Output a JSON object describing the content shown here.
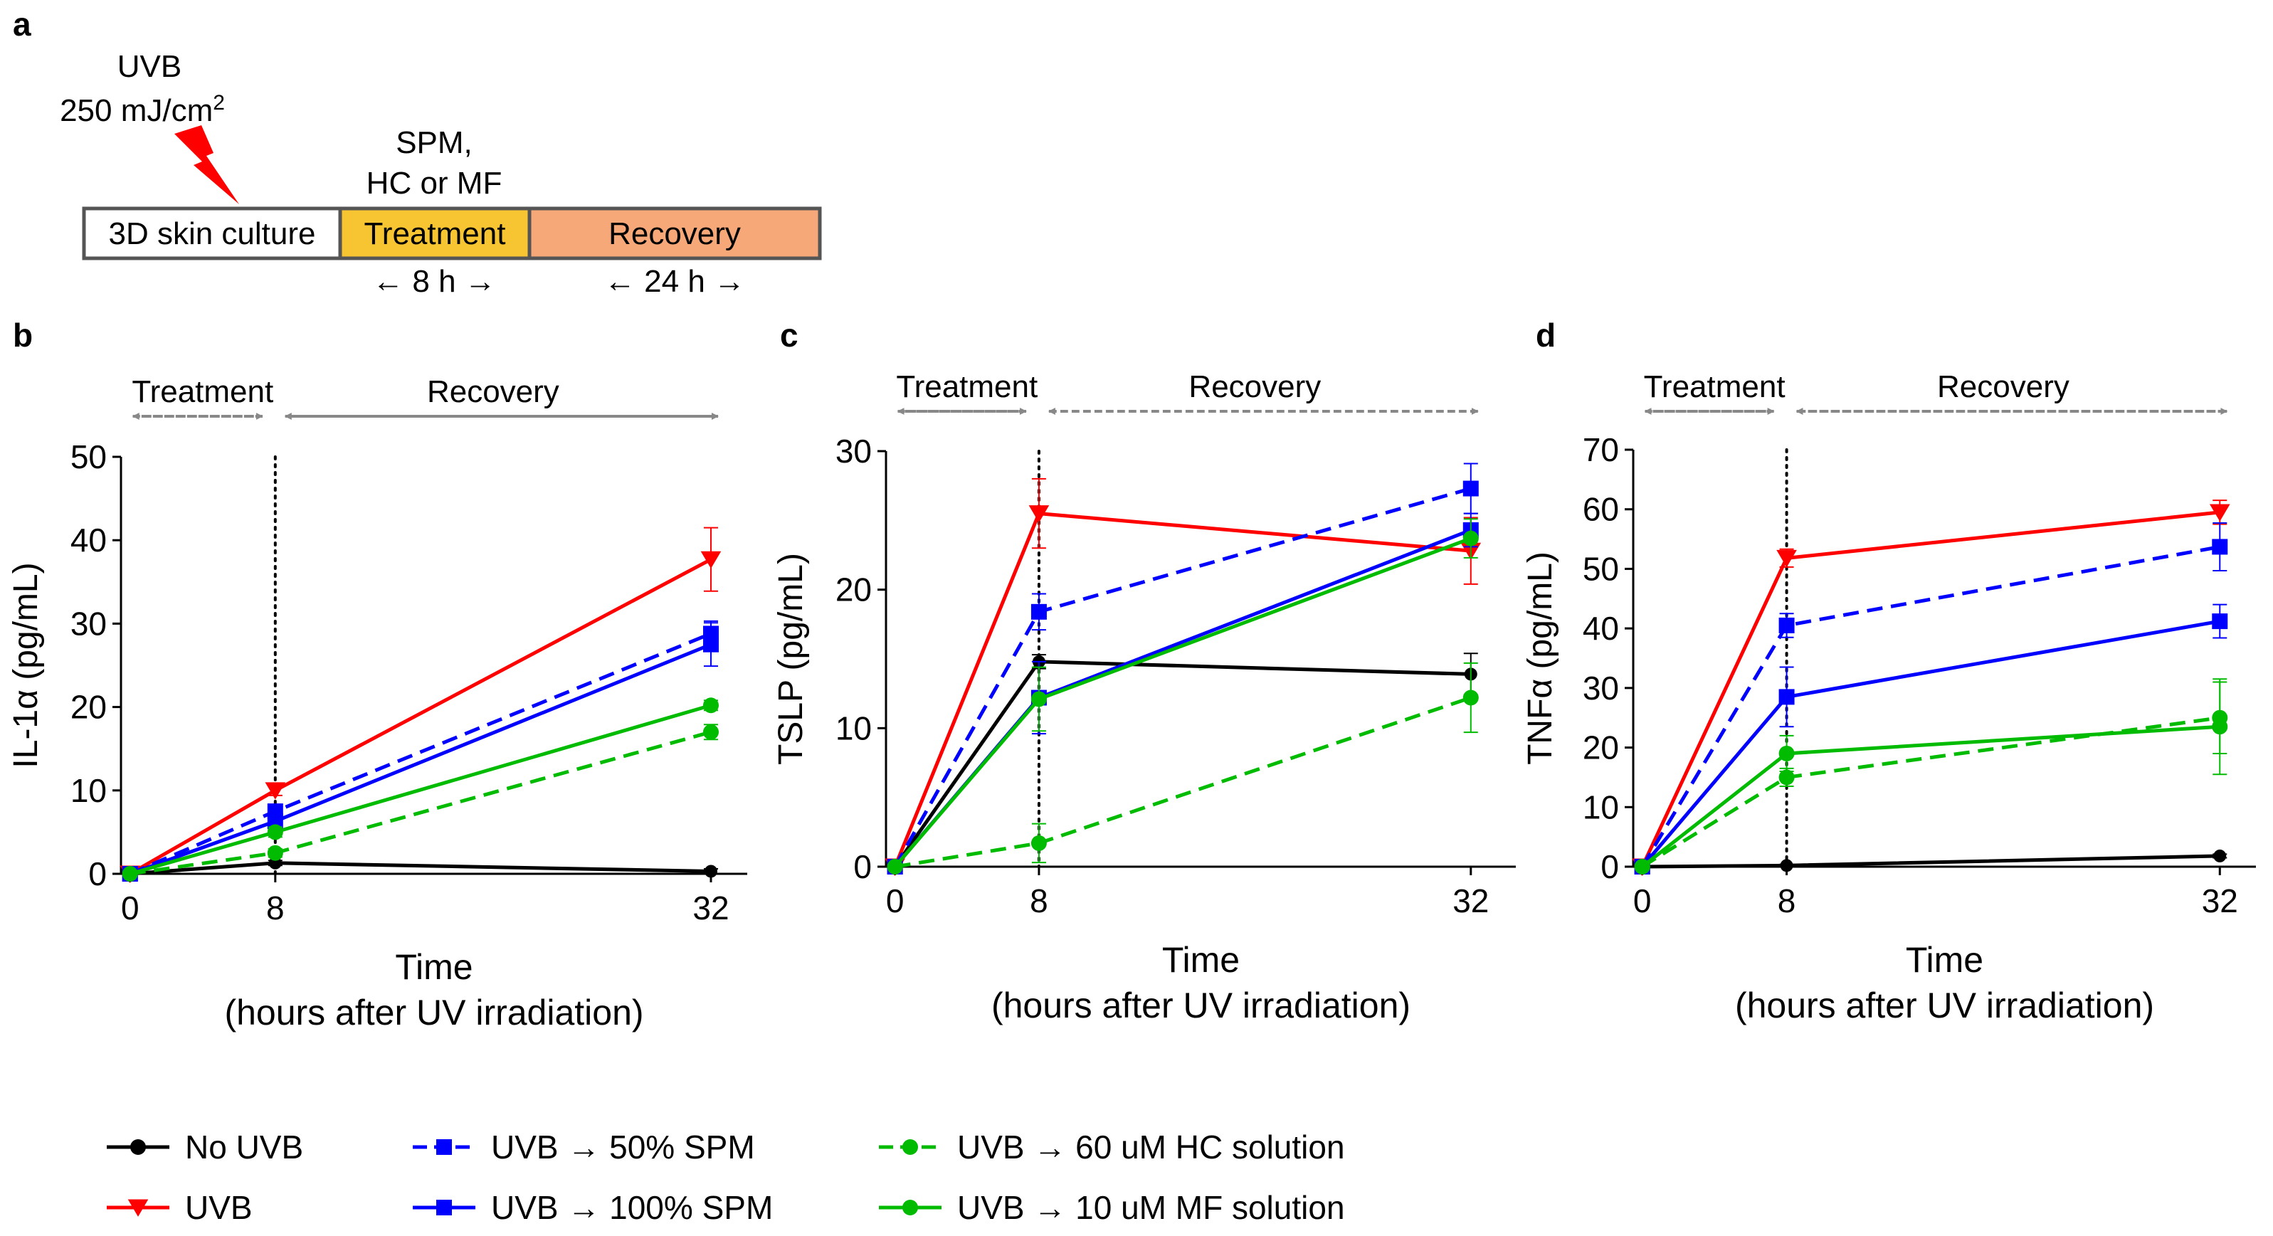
{
  "panel_labels": {
    "a": "a",
    "b": "b",
    "c": "c",
    "d": "d"
  },
  "schematic": {
    "uvb_label": "UVB",
    "dose_label": "250 mJ/cm",
    "dose_superscript": "2",
    "treatment_agents_line1": "SPM,",
    "treatment_agents_line2": "HC or MF",
    "stage_culture": "3D skin culture",
    "stage_treatment": "Treatment",
    "stage_recovery": "Recovery",
    "duration_treatment": "← 8 h →",
    "duration_recovery": "← 24 h →",
    "colors": {
      "treatment": "#f7c531",
      "recovery": "#f7a878",
      "bolt": "#ff0000",
      "border": "#555555"
    }
  },
  "phase_labels": {
    "treatment": "Treatment",
    "recovery": "Recovery"
  },
  "x_title": "Time",
  "x_subtitle": "(hours after UV irradiation)",
  "legend": [
    {
      "label": "No UVB",
      "color": "#000000",
      "dash": false,
      "marker": "circle"
    },
    {
      "label": "UVB",
      "color": "#ff0000",
      "dash": false,
      "marker": "triangle-down"
    },
    {
      "label": "UVB → 50% SPM",
      "color": "#0000ff",
      "dash": true,
      "marker": "square"
    },
    {
      "label": "UVB → 100% SPM",
      "color": "#0000ff",
      "dash": false,
      "marker": "square"
    },
    {
      "label": "UVB → 60 uM HC solution",
      "color": "#00bb00",
      "dash": true,
      "marker": "circle"
    },
    {
      "label": "UVB → 10 uM MF solution",
      "color": "#00bb00",
      "dash": false,
      "marker": "circle"
    }
  ],
  "chart_data": [
    {
      "type": "line",
      "panel": "b",
      "ylabel": "IL-1α (pg/mL)",
      "x": [
        0,
        8,
        32
      ],
      "xticks": [
        "0",
        "8",
        "32"
      ],
      "xlim": [
        -0.5,
        34
      ],
      "ylim": [
        0,
        50
      ],
      "yticks": [
        "0",
        "10",
        "20",
        "30",
        "40",
        "50"
      ],
      "series": [
        {
          "name": "No UVB",
          "values": [
            0,
            1.3,
            0.3
          ],
          "errors": [
            0,
            0.3,
            0.3
          ],
          "color": "#000000",
          "dash": false,
          "marker": "circle"
        },
        {
          "name": "UVB",
          "values": [
            0,
            10,
            37.7
          ],
          "errors": [
            0,
            0.6,
            3.8
          ],
          "color": "#ff0000",
          "dash": false,
          "marker": "triangle-down"
        },
        {
          "name": "UVB → 50% SPM",
          "values": [
            0,
            7.5,
            28.8
          ],
          "errors": [
            0,
            0.8,
            1.5
          ],
          "color": "#0000ff",
          "dash": true,
          "marker": "square"
        },
        {
          "name": "UVB → 100% SPM",
          "values": [
            0,
            6.3,
            27.5
          ],
          "errors": [
            0,
            0.8,
            2.6
          ],
          "color": "#0000ff",
          "dash": false,
          "marker": "square"
        },
        {
          "name": "UVB → 60 uM HC solution",
          "values": [
            0,
            2.5,
            17
          ],
          "errors": [
            0,
            0.5,
            0.9
          ],
          "color": "#00bb00",
          "dash": true,
          "marker": "circle"
        },
        {
          "name": "UVB → 10 uM MF solution",
          "values": [
            0,
            5,
            20.2
          ],
          "errors": [
            0,
            0.6,
            0.6
          ],
          "color": "#00bb00",
          "dash": false,
          "marker": "circle"
        }
      ]
    },
    {
      "type": "line",
      "panel": "c",
      "ylabel": "TSLP (pg/mL)",
      "x": [
        0,
        8,
        32
      ],
      "xticks": [
        "0",
        "8",
        "32"
      ],
      "xlim": [
        -0.5,
        34.5
      ],
      "ylim": [
        0,
        30
      ],
      "yticks": [
        "0",
        "10",
        "20",
        "30"
      ],
      "series": [
        {
          "name": "No UVB",
          "values": [
            0,
            14.8,
            13.9
          ],
          "errors": [
            0,
            0.5,
            1.5
          ],
          "color": "#000000",
          "dash": false,
          "marker": "circle"
        },
        {
          "name": "UVB",
          "values": [
            0,
            25.5,
            22.8
          ],
          "errors": [
            0,
            2.5,
            2.4
          ],
          "color": "#ff0000",
          "dash": false,
          "marker": "triangle-down"
        },
        {
          "name": "UVB → 50% SPM",
          "values": [
            0,
            18.4,
            27.3
          ],
          "errors": [
            0,
            1.3,
            1.8
          ],
          "color": "#0000ff",
          "dash": true,
          "marker": "square"
        },
        {
          "name": "UVB → 100% SPM",
          "values": [
            0,
            12.2,
            24.3
          ],
          "errors": [
            0,
            2.6,
            1.2
          ],
          "color": "#0000ff",
          "dash": false,
          "marker": "square"
        },
        {
          "name": "UVB → 60 uM HC solution",
          "values": [
            0,
            1.7,
            12.2
          ],
          "errors": [
            0,
            1.4,
            2.5
          ],
          "color": "#00bb00",
          "dash": true,
          "marker": "circle"
        },
        {
          "name": "UVB → 10 uM MF solution",
          "values": [
            0,
            12.1,
            23.7
          ],
          "errors": [
            0,
            2.3,
            1.4
          ],
          "color": "#00bb00",
          "dash": false,
          "marker": "circle"
        }
      ]
    },
    {
      "type": "line",
      "panel": "d",
      "ylabel": "TNFα (pg/mL)",
      "x": [
        0,
        8,
        32
      ],
      "xticks": [
        "0",
        "8",
        "32"
      ],
      "xlim": [
        -0.5,
        34
      ],
      "ylim": [
        0,
        70
      ],
      "yticks": [
        "0",
        "10",
        "20",
        "30",
        "40",
        "50",
        "60",
        "70"
      ],
      "series": [
        {
          "name": "No UVB",
          "values": [
            0,
            0.2,
            1.8
          ],
          "errors": [
            0,
            0.2,
            0.3
          ],
          "color": "#000000",
          "dash": false,
          "marker": "circle"
        },
        {
          "name": "UVB",
          "values": [
            0,
            51.8,
            59.5
          ],
          "errors": [
            0,
            1.5,
            2.0
          ],
          "color": "#ff0000",
          "dash": false,
          "marker": "triangle-down"
        },
        {
          "name": "UVB → 50% SPM",
          "values": [
            0,
            40.5,
            53.7
          ],
          "errors": [
            0,
            2.0,
            4.0
          ],
          "color": "#0000ff",
          "dash": true,
          "marker": "square"
        },
        {
          "name": "UVB → 100% SPM",
          "values": [
            0,
            28.5,
            41.2
          ],
          "errors": [
            0,
            5.0,
            2.8
          ],
          "color": "#0000ff",
          "dash": false,
          "marker": "square"
        },
        {
          "name": "UVB → 60 uM HC solution",
          "values": [
            0,
            15,
            25
          ],
          "errors": [
            0,
            1.5,
            6.0
          ],
          "color": "#00bb00",
          "dash": true,
          "marker": "circle"
        },
        {
          "name": "UVB → 10 uM MF solution",
          "values": [
            0,
            19,
            23.5
          ],
          "errors": [
            0,
            3.0,
            8.0
          ],
          "color": "#00bb00",
          "dash": false,
          "marker": "circle"
        }
      ]
    }
  ]
}
